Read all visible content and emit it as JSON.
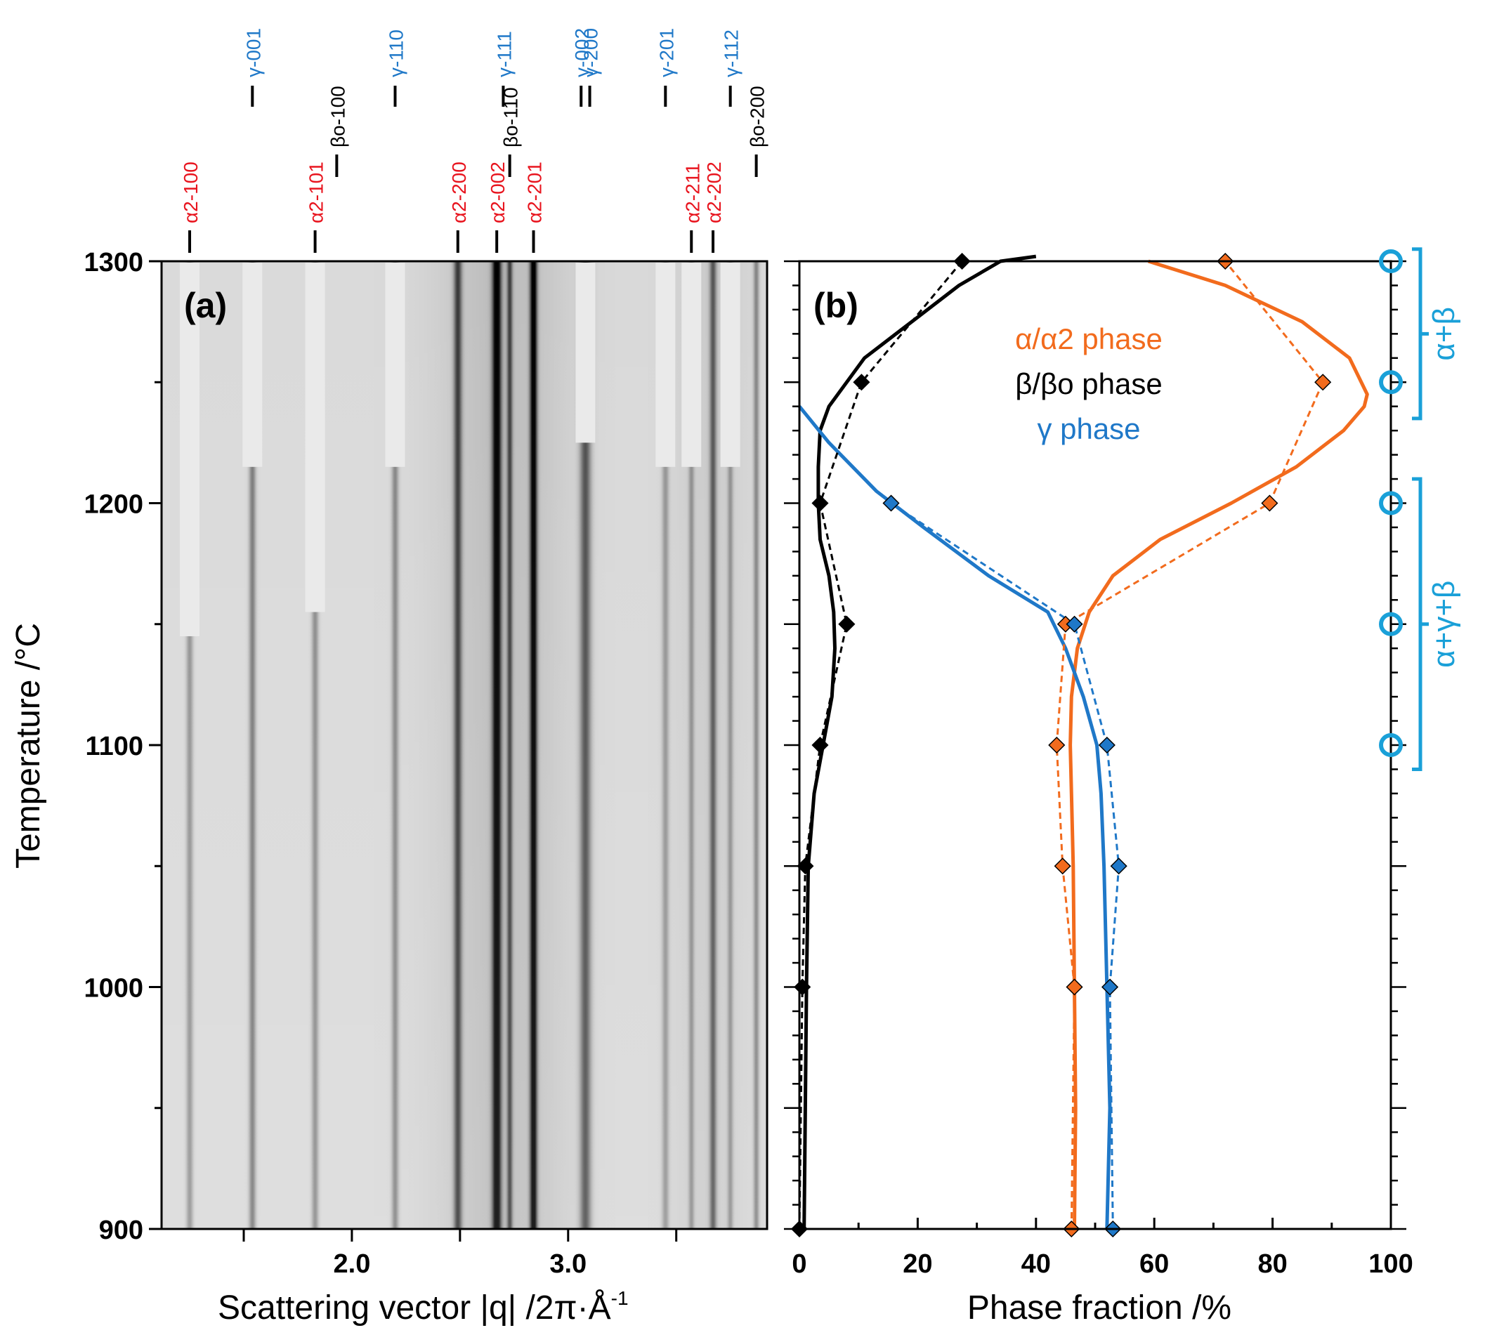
{
  "colors": {
    "alpha": "#f26b1d",
    "beta": "#000000",
    "gamma": "#1f78c8",
    "region": "#1aa0d8",
    "peak_label_red": "#e8141e",
    "peak_label_blue": "#1f78c8"
  },
  "panel_a": {
    "label": "(a)",
    "xlabel": "Scattering vector |q| /2π·Å",
    "xlabel_sup": "-1",
    "ylabel": "Temperature /°C",
    "xticks": [
      "2.0",
      "3.0"
    ],
    "yticks": [
      "1300",
      "1200",
      "1100",
      "1000",
      "900"
    ],
    "peak_labels": [
      {
        "text": "α2-100",
        "q": 1.25,
        "group": "alpha"
      },
      {
        "text": "α2-101",
        "q": 1.83,
        "group": "alpha"
      },
      {
        "text": "α2-200",
        "q": 2.49,
        "group": "alpha"
      },
      {
        "text": "α2-002",
        "q": 2.67,
        "group": "alpha"
      },
      {
        "text": "α2-201",
        "q": 2.84,
        "group": "alpha"
      },
      {
        "text": "α2-211",
        "q": 3.57,
        "group": "alpha"
      },
      {
        "text": "α2-202",
        "q": 3.67,
        "group": "alpha"
      },
      {
        "text": "βo-100",
        "q": 1.93,
        "group": "beta"
      },
      {
        "text": "βo-110",
        "q": 2.73,
        "group": "beta"
      },
      {
        "text": "βo-200",
        "q": 3.87,
        "group": "beta"
      },
      {
        "text": "γ-001",
        "q": 1.54,
        "group": "gamma"
      },
      {
        "text": "γ-110",
        "q": 2.2,
        "group": "gamma"
      },
      {
        "text": "γ-111",
        "q": 2.7,
        "group": "gamma"
      },
      {
        "text": "γ-002",
        "q": 3.06,
        "group": "gamma"
      },
      {
        "text": "γ-200",
        "q": 3.1,
        "group": "gamma"
      },
      {
        "text": "γ-201",
        "q": 3.45,
        "group": "gamma"
      },
      {
        "text": "γ-112",
        "q": 3.75,
        "group": "gamma"
      }
    ]
  },
  "panel_b": {
    "label": "(b)",
    "xlabel": "Phase fraction /%",
    "xticks": [
      "0",
      "20",
      "40",
      "60",
      "80",
      "100"
    ],
    "legend": [
      {
        "text": "α/α2 phase",
        "series": "alpha"
      },
      {
        "text": "β/βo phase",
        "series": "beta"
      },
      {
        "text": "γ phase",
        "series": "gamma"
      }
    ],
    "regions": [
      {
        "label": "α+β",
        "t_top": 1305,
        "t_bottom": 1235
      },
      {
        "label": "α+γ+β",
        "t_top": 1210,
        "t_bottom": 1090
      }
    ]
  },
  "chart_data": [
    {
      "type": "heatmap",
      "xlabel": "Scattering vector |q| /2π·Å-1",
      "ylabel": "Temperature /°C",
      "xlim": [
        1.12,
        3.92
      ],
      "ylim": [
        900,
        1300
      ],
      "title": "(a)"
    },
    {
      "type": "line",
      "xlabel": "Phase fraction /%",
      "ylabel": "Temperature /°C",
      "xlim": [
        0,
        100
      ],
      "ylim": [
        900,
        1300
      ],
      "title": "(b)",
      "series": [
        {
          "name": "α/α2 phase",
          "style": "solid",
          "x": [
            46.5,
            46.7,
            46.5,
            46.3,
            46.0,
            45.8,
            46.0,
            47.0,
            49.0,
            53.0,
            61.0,
            73.0,
            84.0,
            92.0,
            95.5,
            96.0,
            93.0,
            85.0,
            72.0,
            59.0
          ],
          "y": [
            900,
            950,
            1000,
            1050,
            1080,
            1100,
            1120,
            1140,
            1155,
            1170,
            1185,
            1200,
            1215,
            1230,
            1240,
            1245,
            1260,
            1275,
            1290,
            1300
          ]
        },
        {
          "name": "β/βo phase",
          "style": "solid",
          "x": [
            0.8,
            1.0,
            1.2,
            1.5,
            2.5,
            4.0,
            5.5,
            6.0,
            5.8,
            5.0,
            3.5,
            3.2,
            3.2,
            3.5,
            5.0,
            11.0,
            19.0,
            27.0,
            34.0,
            40.0
          ],
          "y": [
            900,
            950,
            1000,
            1050,
            1080,
            1100,
            1120,
            1140,
            1155,
            1170,
            1185,
            1200,
            1215,
            1230,
            1240,
            1260,
            1275,
            1290,
            1300,
            1302
          ]
        },
        {
          "name": "γ phase",
          "style": "solid",
          "x": [
            52.0,
            52.5,
            52.0,
            51.5,
            51.0,
            50.3,
            48.0,
            45.0,
            42.0,
            32.0,
            21.0,
            13.0,
            5.0,
            0.0
          ],
          "y": [
            900,
            950,
            1000,
            1050,
            1080,
            1100,
            1120,
            1140,
            1155,
            1170,
            1190,
            1205,
            1225,
            1240
          ]
        },
        {
          "name": "α/α2 phase",
          "style": "dashed",
          "x": [
            46,
            46.5,
            44.5,
            43.5,
            45,
            79.5,
            88.5,
            72
          ],
          "y": [
            900,
            1000,
            1050,
            1100,
            1150,
            1200,
            1250,
            1300
          ]
        },
        {
          "name": "β/βo phase",
          "style": "dashed",
          "x": [
            0,
            0.5,
            1,
            3.5,
            8,
            3.5,
            10.5,
            27.5
          ],
          "y": [
            900,
            1000,
            1050,
            1100,
            1150,
            1200,
            1250,
            1300
          ]
        },
        {
          "name": "γ phase",
          "style": "dashed",
          "x": [
            53,
            52.5,
            54,
            52,
            46.5,
            15.5
          ],
          "y": [
            900,
            1000,
            1050,
            1100,
            1150,
            1200
          ]
        }
      ],
      "region_markers_T": [
        1300,
        1250,
        1200,
        1150,
        1100
      ]
    }
  ]
}
